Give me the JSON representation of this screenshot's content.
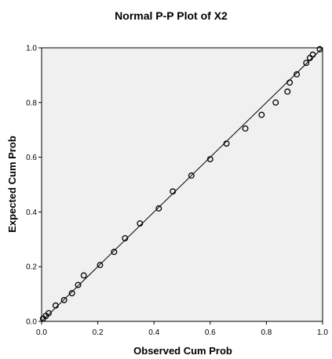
{
  "chart_data": {
    "type": "scatter",
    "title": "Normal P-P Plot of X2",
    "xlabel": "Observed Cum Prob",
    "ylabel": "Expected Cum Prob",
    "xlim": [
      0.0,
      1.0
    ],
    "ylim": [
      0.0,
      1.0
    ],
    "x_ticks": [
      "0.0",
      "0.2",
      "0.4",
      "0.6",
      "0.8",
      "1.0"
    ],
    "y_ticks": [
      "0.0",
      "0.2",
      "0.4",
      "0.6",
      "0.8",
      "1.0"
    ],
    "grid": false,
    "reference_line": [
      [
        0.0,
        0.0
      ],
      [
        1.0,
        1.0
      ]
    ],
    "points": [
      {
        "x": 0.005,
        "y": 0.01
      },
      {
        "x": 0.015,
        "y": 0.02
      },
      {
        "x": 0.025,
        "y": 0.03
      },
      {
        "x": 0.05,
        "y": 0.058
      },
      {
        "x": 0.08,
        "y": 0.078
      },
      {
        "x": 0.108,
        "y": 0.103
      },
      {
        "x": 0.13,
        "y": 0.133
      },
      {
        "x": 0.15,
        "y": 0.168
      },
      {
        "x": 0.208,
        "y": 0.206
      },
      {
        "x": 0.258,
        "y": 0.254
      },
      {
        "x": 0.297,
        "y": 0.304
      },
      {
        "x": 0.35,
        "y": 0.358
      },
      {
        "x": 0.417,
        "y": 0.413
      },
      {
        "x": 0.467,
        "y": 0.475
      },
      {
        "x": 0.533,
        "y": 0.533
      },
      {
        "x": 0.6,
        "y": 0.593
      },
      {
        "x": 0.658,
        "y": 0.65
      },
      {
        "x": 0.725,
        "y": 0.705
      },
      {
        "x": 0.783,
        "y": 0.755
      },
      {
        "x": 0.833,
        "y": 0.8
      },
      {
        "x": 0.875,
        "y": 0.84
      },
      {
        "x": 0.883,
        "y": 0.873
      },
      {
        "x": 0.908,
        "y": 0.903
      },
      {
        "x": 0.942,
        "y": 0.945
      },
      {
        "x": 0.955,
        "y": 0.963
      },
      {
        "x": 0.965,
        "y": 0.975
      },
      {
        "x": 0.99,
        "y": 0.995
      }
    ],
    "colors": {
      "plot_background": "#f0f0f0",
      "marker": "#000000",
      "line": "#000000"
    }
  }
}
